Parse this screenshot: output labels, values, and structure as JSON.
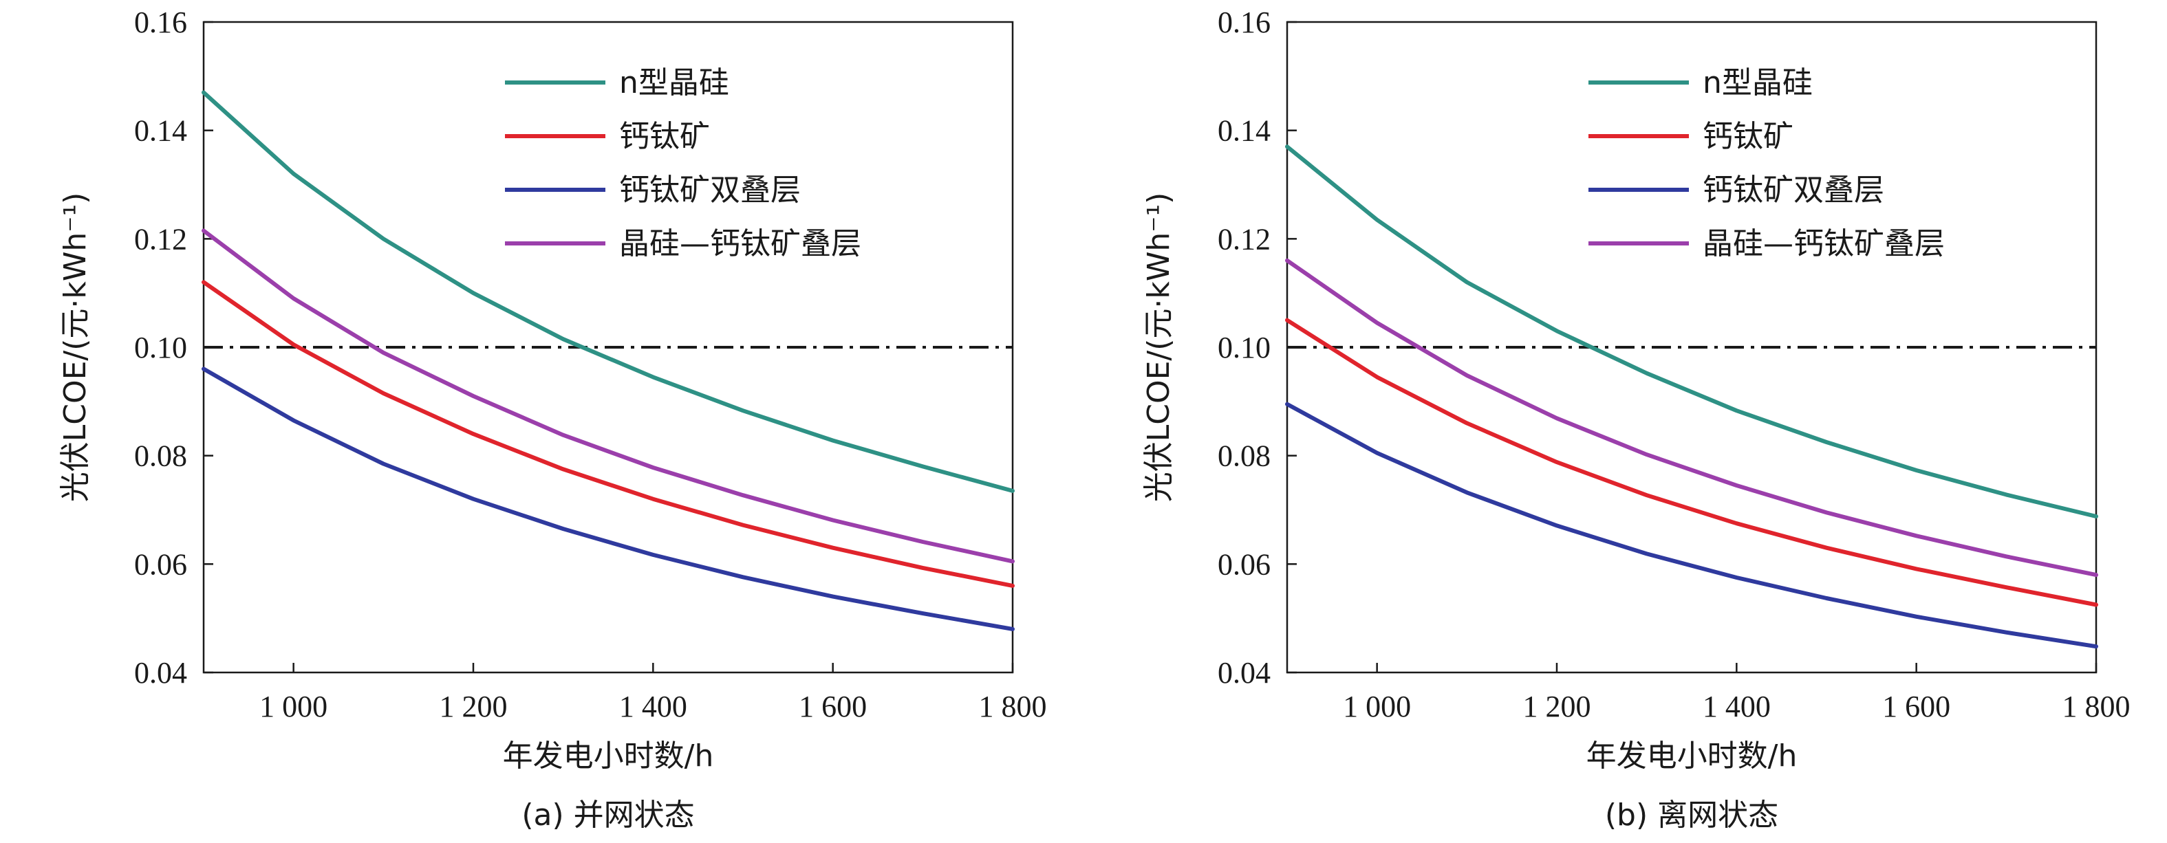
{
  "chart_data": [
    {
      "type": "line",
      "caption": "(a) 并网状态",
      "xlabel": "年发电小时数/h",
      "ylabel": "光伏LCOE/(元·kWh⁻¹)",
      "xlim": [
        900,
        1800
      ],
      "ylim": [
        0.04,
        0.16
      ],
      "xticks": [
        1000,
        1200,
        1400,
        1600,
        1800
      ],
      "xtick_labels": [
        "1 000",
        "1 200",
        "1 400",
        "1 600",
        "1 800"
      ],
      "yticks": [
        0.04,
        0.06,
        0.08,
        0.1,
        0.12,
        0.14,
        0.16
      ],
      "ytick_labels": [
        "0.04",
        "0.06",
        "0.08",
        "0.10",
        "0.12",
        "0.14",
        "0.16"
      ],
      "legend_position": "top-right",
      "grid": false,
      "reference_line": {
        "y": 0.1,
        "style": "dash-dot",
        "color": "#1a1a1a"
      },
      "x": [
        900,
        1000,
        1100,
        1200,
        1300,
        1400,
        1500,
        1600,
        1700,
        1800
      ],
      "series": [
        {
          "name": "n型晶硅",
          "color": "#2e9185",
          "values": [
            0.147,
            0.132,
            0.12,
            0.11,
            0.1015,
            0.0945,
            0.0883,
            0.0828,
            0.078,
            0.0735
          ]
        },
        {
          "name": "钙钛矿",
          "color": "#e0242c",
          "values": [
            0.112,
            0.1005,
            0.0915,
            0.084,
            0.0775,
            0.072,
            0.0672,
            0.063,
            0.0593,
            0.056
          ]
        },
        {
          "name": "钙钛矿双叠层",
          "color": "#2f3a9e",
          "values": [
            0.096,
            0.0865,
            0.0785,
            0.072,
            0.0665,
            0.0617,
            0.0576,
            0.054,
            0.0509,
            0.048
          ]
        },
        {
          "name": "晶硅—钙钛矿叠层",
          "color": "#9b3fab",
          "values": [
            0.1215,
            0.109,
            0.099,
            0.091,
            0.0838,
            0.0778,
            0.0727,
            0.0681,
            0.0641,
            0.0605
          ]
        }
      ]
    },
    {
      "type": "line",
      "caption": "(b) 离网状态",
      "xlabel": "年发电小时数/h",
      "ylabel": "光伏LCOE/(元·kWh⁻¹)",
      "xlim": [
        900,
        1800
      ],
      "ylim": [
        0.04,
        0.16
      ],
      "xticks": [
        1000,
        1200,
        1400,
        1600,
        1800
      ],
      "xtick_labels": [
        "1 000",
        "1 200",
        "1 400",
        "1 600",
        "1 800"
      ],
      "yticks": [
        0.04,
        0.06,
        0.08,
        0.1,
        0.12,
        0.14,
        0.16
      ],
      "ytick_labels": [
        "0.04",
        "0.06",
        "0.08",
        "0.10",
        "0.12",
        "0.14",
        "0.16"
      ],
      "legend_position": "top-right",
      "grid": false,
      "reference_line": {
        "y": 0.1,
        "style": "dash-dot",
        "color": "#1a1a1a"
      },
      "x": [
        900,
        1000,
        1100,
        1200,
        1300,
        1400,
        1500,
        1600,
        1700,
        1800
      ],
      "series": [
        {
          "name": "n型晶硅",
          "color": "#2e9185",
          "values": [
            0.137,
            0.1235,
            0.112,
            0.103,
            0.0952,
            0.0883,
            0.0825,
            0.0773,
            0.0728,
            0.0688
          ]
        },
        {
          "name": "钙钛矿",
          "color": "#e0242c",
          "values": [
            0.105,
            0.0945,
            0.086,
            0.0788,
            0.0727,
            0.0675,
            0.063,
            0.0591,
            0.0557,
            0.0525
          ]
        },
        {
          "name": "钙钛矿双叠层",
          "color": "#2f3a9e",
          "values": [
            0.0895,
            0.0805,
            0.0732,
            0.0671,
            0.0619,
            0.0575,
            0.0537,
            0.0503,
            0.0474,
            0.0448
          ]
        },
        {
          "name": "晶硅—钙钛矿叠层",
          "color": "#9b3fab",
          "values": [
            0.116,
            0.1045,
            0.0948,
            0.0869,
            0.0802,
            0.0745,
            0.0695,
            0.0652,
            0.0614,
            0.058
          ]
        }
      ]
    }
  ]
}
